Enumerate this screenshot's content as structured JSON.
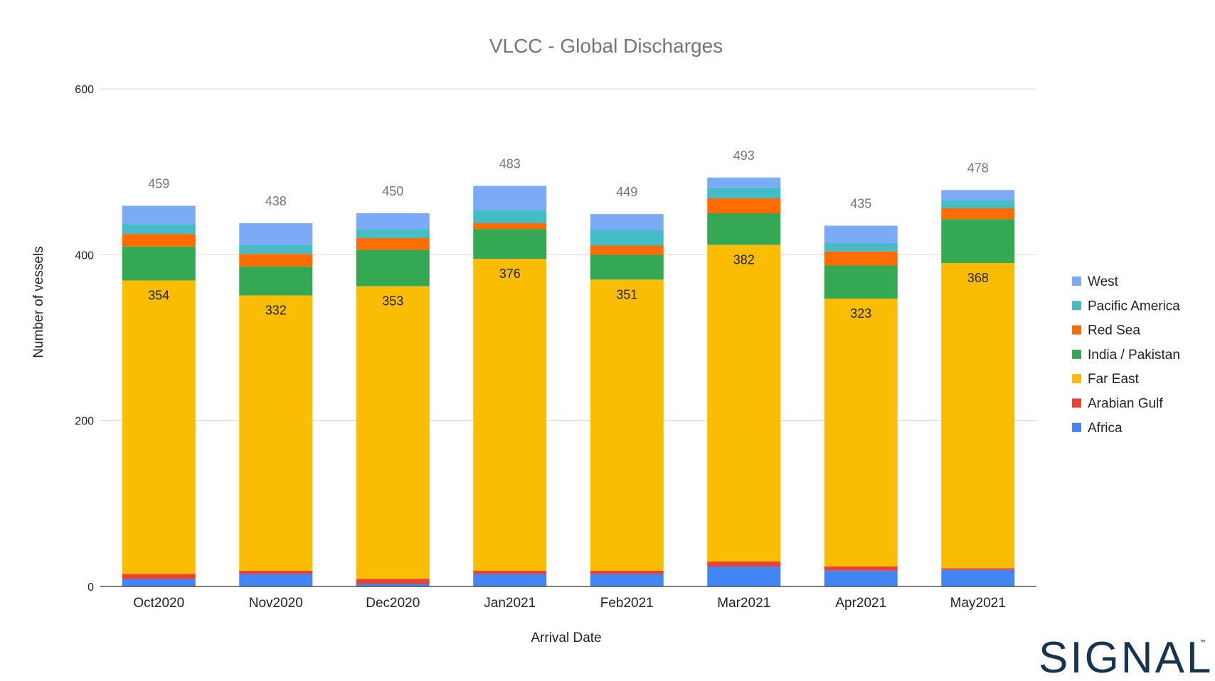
{
  "chart_data": {
    "type": "bar",
    "stacked": true,
    "title": "VLCC - Global Discharges",
    "xlabel": "Arrival Date",
    "ylabel": "Number of vessels",
    "ylim": [
      0,
      600
    ],
    "yticks": [
      0,
      200,
      400,
      600
    ],
    "grid": true,
    "legend_position": "right",
    "categories": [
      "Oct2020",
      "Nov2020",
      "Dec2020",
      "Jan2021",
      "Feb2021",
      "Mar2021",
      "Apr2021",
      "May2021"
    ],
    "series": [
      {
        "name": "Africa",
        "color": "#4285f4",
        "values": [
          9,
          15,
          3,
          15,
          15,
          24,
          19,
          20
        ]
      },
      {
        "name": "Arabian Gulf",
        "color": "#ea4335",
        "values": [
          6,
          4,
          6,
          4,
          4,
          6,
          5,
          2
        ]
      },
      {
        "name": "Far East",
        "color": "#fbbc04",
        "values": [
          354,
          332,
          353,
          376,
          351,
          382,
          323,
          368
        ]
      },
      {
        "name": "India / Pakistan",
        "color": "#34a853",
        "values": [
          41,
          35,
          44,
          36,
          30,
          38,
          40,
          53
        ]
      },
      {
        "name": "Red Sea",
        "color": "#ff6d01",
        "values": [
          15,
          15,
          14,
          7,
          11,
          18,
          17,
          13
        ]
      },
      {
        "name": "Pacific America",
        "color": "#46bdc6",
        "values": [
          12,
          11,
          11,
          16,
          19,
          13,
          10,
          10
        ]
      },
      {
        "name": "West",
        "color": "#7baaf7",
        "values": [
          22,
          26,
          19,
          29,
          19,
          12,
          21,
          12
        ]
      }
    ],
    "segment_labels_series": "Far East",
    "totals": [
      459,
      438,
      450,
      483,
      449,
      493,
      435,
      478
    ]
  },
  "branding": {
    "logo_text": "SIGNAL",
    "logo_mark": "™",
    "logo_color": "#17344f"
  }
}
